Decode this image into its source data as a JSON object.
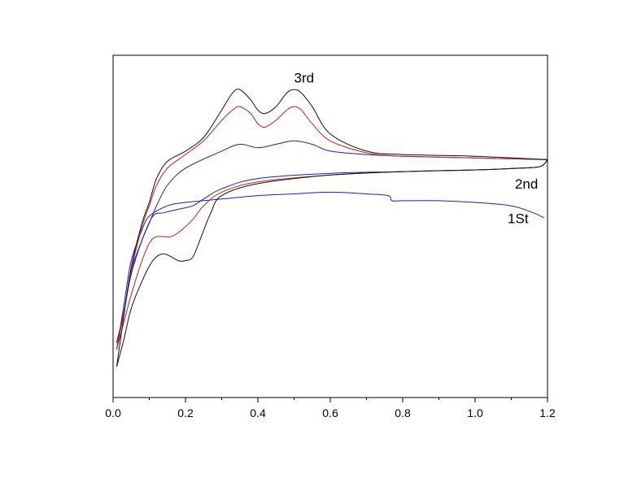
{
  "chart_data": {
    "type": "line",
    "title": "",
    "xlabel": "",
    "ylabel": "",
    "xlim": [
      0.0,
      1.2
    ],
    "ylim": [
      0,
      100
    ],
    "grid": false,
    "x_ticks": [
      "0.0",
      "0.2",
      "0.4",
      "0.6",
      "0.8",
      "1.0",
      "1.2"
    ],
    "x_tick_values": [
      0.0,
      0.2,
      0.4,
      0.6,
      0.8,
      1.0,
      1.2
    ],
    "curve_labels": [
      {
        "text": "3rd",
        "x": 0.5,
        "y": 92
      },
      {
        "text": "2nd",
        "x": 1.11,
        "y": 61
      },
      {
        "text": "1St",
        "x": 1.09,
        "y": 51
      }
    ],
    "series": [
      {
        "color": "#1f1fb4",
        "segments": [
          [
            [
              0.01,
              16
            ],
            [
              0.03,
              25
            ],
            [
              0.05,
              37
            ],
            [
              0.08,
              46
            ],
            [
              0.1,
              51
            ],
            [
              0.12,
              56
            ],
            [
              0.15,
              62
            ],
            [
              0.2,
              67
            ],
            [
              0.3,
              72
            ],
            [
              0.35,
              74
            ],
            [
              0.4,
              73
            ],
            [
              0.45,
              74
            ],
            [
              0.5,
              75
            ],
            [
              0.55,
              74
            ],
            [
              0.6,
              72
            ],
            [
              0.7,
              71
            ],
            [
              0.8,
              70.5
            ],
            [
              1.0,
              70
            ],
            [
              1.2,
              69.5
            ]
          ],
          [
            [
              1.2,
              69.5
            ],
            [
              1.18,
              67.5
            ],
            [
              1.12,
              67
            ],
            [
              1.0,
              66.5
            ],
            [
              0.8,
              66
            ],
            [
              0.6,
              65.5
            ],
            [
              0.4,
              64
            ],
            [
              0.3,
              61
            ],
            [
              0.25,
              58
            ],
            [
              0.22,
              56
            ],
            [
              0.18,
              55
            ],
            [
              0.14,
              54
            ],
            [
              0.11,
              53
            ],
            [
              0.08,
              46
            ],
            [
              0.05,
              36
            ],
            [
              0.03,
              25
            ],
            [
              0.01,
              16
            ]
          ],
          [
            [
              0.01,
              14
            ],
            [
              0.03,
              27
            ],
            [
              0.05,
              40
            ],
            [
              0.08,
              49
            ],
            [
              0.1,
              53
            ],
            [
              0.15,
              56
            ],
            [
              0.2,
              57
            ],
            [
              0.3,
              58
            ],
            [
              0.4,
              59
            ],
            [
              0.5,
              59.5
            ],
            [
              0.6,
              60
            ],
            [
              0.7,
              59.5
            ],
            [
              0.76,
              59
            ],
            [
              0.77,
              57.5
            ],
            [
              0.8,
              57.5
            ],
            [
              0.9,
              57.5
            ],
            [
              1.0,
              57
            ],
            [
              1.1,
              56
            ],
            [
              1.16,
              54
            ],
            [
              1.19,
              52.5
            ]
          ]
        ]
      },
      {
        "color": "#c62020",
        "segments": [
          [
            [
              0.01,
              14
            ],
            [
              0.03,
              25
            ],
            [
              0.05,
              37
            ],
            [
              0.08,
              50
            ],
            [
              0.1,
              56
            ],
            [
              0.12,
              62
            ],
            [
              0.15,
              67
            ],
            [
              0.2,
              71
            ],
            [
              0.25,
              75
            ],
            [
              0.3,
              81
            ],
            [
              0.33,
              84
            ],
            [
              0.35,
              85
            ],
            [
              0.38,
              83
            ],
            [
              0.4,
              80
            ],
            [
              0.42,
              79
            ],
            [
              0.45,
              81
            ],
            [
              0.48,
              84
            ],
            [
              0.5,
              85
            ],
            [
              0.52,
              84
            ],
            [
              0.55,
              80
            ],
            [
              0.6,
              75
            ],
            [
              0.7,
              71.5
            ],
            [
              0.8,
              70.5
            ],
            [
              1.0,
              70
            ],
            [
              1.2,
              69.5
            ]
          ],
          [
            [
              1.2,
              69.5
            ],
            [
              1.18,
              67.5
            ],
            [
              1.12,
              67
            ],
            [
              1.0,
              66.5
            ],
            [
              0.8,
              66
            ],
            [
              0.6,
              65
            ],
            [
              0.4,
              63
            ],
            [
              0.3,
              60
            ],
            [
              0.25,
              56
            ],
            [
              0.22,
              52
            ],
            [
              0.19,
              49
            ],
            [
              0.16,
              47
            ],
            [
              0.12,
              47
            ],
            [
              0.1,
              45
            ],
            [
              0.08,
              40
            ],
            [
              0.05,
              30
            ],
            [
              0.03,
              22
            ],
            [
              0.01,
              14
            ]
          ]
        ]
      },
      {
        "color": "#111111",
        "segments": [
          [
            [
              0.01,
              9
            ],
            [
              0.03,
              24
            ],
            [
              0.05,
              38
            ],
            [
              0.08,
              51
            ],
            [
              0.1,
              57
            ],
            [
              0.12,
              64
            ],
            [
              0.15,
              69
            ],
            [
              0.2,
              72
            ],
            [
              0.25,
              76
            ],
            [
              0.3,
              84
            ],
            [
              0.33,
              89
            ],
            [
              0.35,
              90
            ],
            [
              0.38,
              87
            ],
            [
              0.4,
              84
            ],
            [
              0.42,
              83
            ],
            [
              0.45,
              85
            ],
            [
              0.48,
              89
            ],
            [
              0.5,
              90
            ],
            [
              0.52,
              89
            ],
            [
              0.55,
              85
            ],
            [
              0.6,
              77
            ],
            [
              0.7,
              72
            ],
            [
              0.8,
              71
            ],
            [
              1.0,
              70.5
            ],
            [
              1.2,
              69.5
            ]
          ],
          [
            [
              1.2,
              69.5
            ],
            [
              1.18,
              67.5
            ],
            [
              1.12,
              67
            ],
            [
              1.0,
              66.5
            ],
            [
              0.8,
              66
            ],
            [
              0.6,
              65
            ],
            [
              0.4,
              62.5
            ],
            [
              0.3,
              59
            ],
            [
              0.27,
              54
            ],
            [
              0.24,
              46
            ],
            [
              0.22,
              41
            ],
            [
              0.2,
              40
            ],
            [
              0.18,
              40
            ],
            [
              0.14,
              42
            ],
            [
              0.11,
              40
            ],
            [
              0.08,
              34
            ],
            [
              0.05,
              26
            ],
            [
              0.03,
              17
            ],
            [
              0.01,
              9
            ]
          ]
        ]
      }
    ]
  }
}
